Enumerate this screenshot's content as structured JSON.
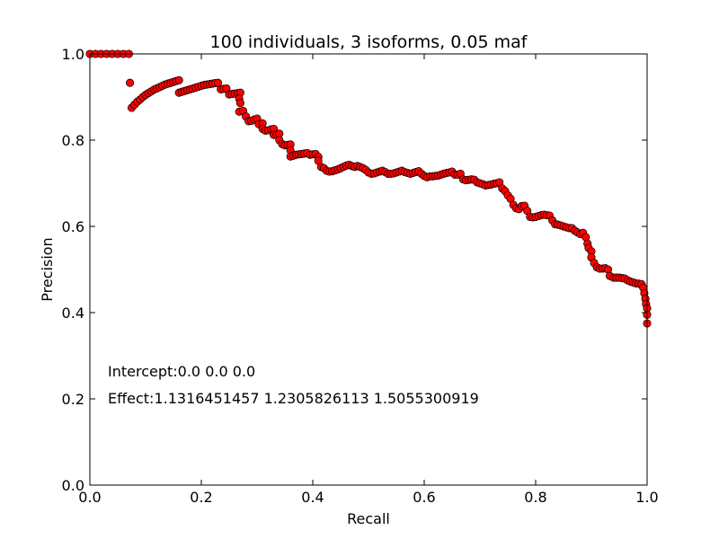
{
  "chart_data": {
    "type": "scatter",
    "title": "100 individuals, 3 isoforms, 0.05 maf",
    "xlabel": "Recall",
    "ylabel": "Precision",
    "xlim": [
      0.0,
      1.0
    ],
    "ylim": [
      0.0,
      1.0
    ],
    "xticks": [
      "0.0",
      "0.2",
      "0.4",
      "0.6",
      "0.8",
      "1.0"
    ],
    "yticks": [
      "0.0",
      "0.2",
      "0.4",
      "0.6",
      "0.8",
      "1.0"
    ],
    "grid": false,
    "legend": "none",
    "marker_color": "#ff0000",
    "marker_edge_color": "#000000",
    "annotations": [
      "Intercept:0.0 0.0 0.0",
      "Effect:1.1316451457 1.2305826113 1.5055300919"
    ],
    "points": [
      [
        0.0,
        1.0
      ],
      [
        0.01,
        1.0
      ],
      [
        0.02,
        1.0
      ],
      [
        0.03,
        1.0
      ],
      [
        0.04,
        1.0
      ],
      [
        0.05,
        1.0
      ],
      [
        0.06,
        1.0
      ],
      [
        0.07,
        1.0
      ],
      [
        0.072,
        0.933
      ],
      [
        0.075,
        0.875
      ],
      [
        0.08,
        0.882
      ],
      [
        0.085,
        0.889
      ],
      [
        0.09,
        0.894
      ],
      [
        0.095,
        0.9
      ],
      [
        0.1,
        0.905
      ],
      [
        0.105,
        0.909
      ],
      [
        0.11,
        0.913
      ],
      [
        0.115,
        0.917
      ],
      [
        0.12,
        0.92
      ],
      [
        0.125,
        0.923
      ],
      [
        0.13,
        0.926
      ],
      [
        0.135,
        0.929
      ],
      [
        0.14,
        0.931
      ],
      [
        0.145,
        0.933
      ],
      [
        0.15,
        0.935
      ],
      [
        0.155,
        0.937
      ],
      [
        0.16,
        0.939
      ],
      [
        0.16,
        0.91
      ],
      [
        0.165,
        0.912
      ],
      [
        0.17,
        0.914
      ],
      [
        0.175,
        0.916
      ],
      [
        0.18,
        0.918
      ],
      [
        0.185,
        0.92
      ],
      [
        0.19,
        0.922
      ],
      [
        0.195,
        0.924
      ],
      [
        0.2,
        0.926
      ],
      [
        0.205,
        0.928
      ],
      [
        0.21,
        0.929
      ],
      [
        0.215,
        0.93
      ],
      [
        0.22,
        0.931
      ],
      [
        0.225,
        0.932
      ],
      [
        0.23,
        0.933
      ],
      [
        0.235,
        0.918
      ],
      [
        0.24,
        0.919
      ],
      [
        0.245,
        0.92
      ],
      [
        0.25,
        0.906
      ],
      [
        0.255,
        0.907
      ],
      [
        0.26,
        0.908
      ],
      [
        0.265,
        0.909
      ],
      [
        0.27,
        0.91
      ],
      [
        0.268,
        0.896
      ],
      [
        0.27,
        0.886
      ],
      [
        0.268,
        0.866
      ],
      [
        0.275,
        0.868
      ],
      [
        0.28,
        0.855
      ],
      [
        0.285,
        0.844
      ],
      [
        0.29,
        0.845
      ],
      [
        0.295,
        0.848
      ],
      [
        0.3,
        0.85
      ],
      [
        0.303,
        0.837
      ],
      [
        0.31,
        0.839
      ],
      [
        0.31,
        0.826
      ],
      [
        0.315,
        0.822
      ],
      [
        0.32,
        0.823
      ],
      [
        0.325,
        0.825
      ],
      [
        0.33,
        0.826
      ],
      [
        0.33,
        0.812
      ],
      [
        0.335,
        0.813
      ],
      [
        0.34,
        0.815
      ],
      [
        0.34,
        0.8
      ],
      [
        0.345,
        0.791
      ],
      [
        0.35,
        0.788
      ],
      [
        0.355,
        0.789
      ],
      [
        0.36,
        0.79
      ],
      [
        0.36,
        0.776
      ],
      [
        0.36,
        0.762
      ],
      [
        0.365,
        0.764
      ],
      [
        0.37,
        0.766
      ],
      [
        0.375,
        0.767
      ],
      [
        0.38,
        0.768
      ],
      [
        0.385,
        0.769
      ],
      [
        0.39,
        0.77
      ],
      [
        0.395,
        0.766
      ],
      [
        0.4,
        0.767
      ],
      [
        0.405,
        0.768
      ],
      [
        0.41,
        0.761
      ],
      [
        0.41,
        0.752
      ],
      [
        0.415,
        0.738
      ],
      [
        0.42,
        0.735
      ],
      [
        0.425,
        0.729
      ],
      [
        0.43,
        0.727
      ],
      [
        0.435,
        0.728
      ],
      [
        0.44,
        0.73
      ],
      [
        0.445,
        0.732
      ],
      [
        0.45,
        0.735
      ],
      [
        0.455,
        0.738
      ],
      [
        0.46,
        0.741
      ],
      [
        0.465,
        0.743
      ],
      [
        0.47,
        0.74
      ],
      [
        0.475,
        0.738
      ],
      [
        0.48,
        0.74
      ],
      [
        0.485,
        0.738
      ],
      [
        0.49,
        0.735
      ],
      [
        0.495,
        0.731
      ],
      [
        0.5,
        0.725
      ],
      [
        0.505,
        0.722
      ],
      [
        0.51,
        0.723
      ],
      [
        0.515,
        0.725
      ],
      [
        0.52,
        0.727
      ],
      [
        0.525,
        0.729
      ],
      [
        0.53,
        0.726
      ],
      [
        0.535,
        0.722
      ],
      [
        0.54,
        0.722
      ],
      [
        0.545,
        0.723
      ],
      [
        0.55,
        0.725
      ],
      [
        0.555,
        0.727
      ],
      [
        0.56,
        0.729
      ],
      [
        0.565,
        0.726
      ],
      [
        0.57,
        0.724
      ],
      [
        0.575,
        0.722
      ],
      [
        0.58,
        0.724
      ],
      [
        0.585,
        0.726
      ],
      [
        0.59,
        0.728
      ],
      [
        0.595,
        0.722
      ],
      [
        0.6,
        0.717
      ],
      [
        0.605,
        0.714
      ],
      [
        0.61,
        0.716
      ],
      [
        0.615,
        0.716
      ],
      [
        0.62,
        0.717
      ],
      [
        0.625,
        0.718
      ],
      [
        0.63,
        0.72
      ],
      [
        0.635,
        0.722
      ],
      [
        0.64,
        0.724
      ],
      [
        0.645,
        0.725
      ],
      [
        0.65,
        0.727
      ],
      [
        0.655,
        0.72
      ],
      [
        0.66,
        0.72
      ],
      [
        0.665,
        0.722
      ],
      [
        0.67,
        0.709
      ],
      [
        0.675,
        0.707
      ],
      [
        0.68,
        0.708
      ],
      [
        0.685,
        0.709
      ],
      [
        0.69,
        0.708
      ],
      [
        0.695,
        0.702
      ],
      [
        0.7,
        0.7
      ],
      [
        0.705,
        0.698
      ],
      [
        0.71,
        0.695
      ],
      [
        0.715,
        0.696
      ],
      [
        0.72,
        0.697
      ],
      [
        0.725,
        0.699
      ],
      [
        0.73,
        0.7
      ],
      [
        0.735,
        0.702
      ],
      [
        0.74,
        0.688
      ],
      [
        0.745,
        0.682
      ],
      [
        0.75,
        0.672
      ],
      [
        0.755,
        0.664
      ],
      [
        0.76,
        0.65
      ],
      [
        0.765,
        0.642
      ],
      [
        0.77,
        0.64
      ],
      [
        0.775,
        0.647
      ],
      [
        0.78,
        0.648
      ],
      [
        0.785,
        0.636
      ],
      [
        0.79,
        0.622
      ],
      [
        0.795,
        0.621
      ],
      [
        0.8,
        0.622
      ],
      [
        0.805,
        0.624
      ],
      [
        0.81,
        0.626
      ],
      [
        0.815,
        0.627
      ],
      [
        0.82,
        0.626
      ],
      [
        0.825,
        0.625
      ],
      [
        0.83,
        0.614
      ],
      [
        0.835,
        0.605
      ],
      [
        0.84,
        0.604
      ],
      [
        0.845,
        0.602
      ],
      [
        0.85,
        0.6
      ],
      [
        0.855,
        0.598
      ],
      [
        0.86,
        0.596
      ],
      [
        0.865,
        0.596
      ],
      [
        0.87,
        0.59
      ],
      [
        0.875,
        0.586
      ],
      [
        0.88,
        0.582
      ],
      [
        0.885,
        0.585
      ],
      [
        0.89,
        0.575
      ],
      [
        0.893,
        0.56
      ],
      [
        0.895,
        0.55
      ],
      [
        0.9,
        0.542
      ],
      [
        0.9,
        0.528
      ],
      [
        0.905,
        0.515
      ],
      [
        0.91,
        0.505
      ],
      [
        0.915,
        0.502
      ],
      [
        0.92,
        0.502
      ],
      [
        0.925,
        0.503
      ],
      [
        0.93,
        0.5
      ],
      [
        0.933,
        0.485
      ],
      [
        0.94,
        0.481
      ],
      [
        0.945,
        0.481
      ],
      [
        0.95,
        0.481
      ],
      [
        0.955,
        0.48
      ],
      [
        0.96,
        0.479
      ],
      [
        0.965,
        0.475
      ],
      [
        0.97,
        0.472
      ],
      [
        0.975,
        0.47
      ],
      [
        0.98,
        0.468
      ],
      [
        0.985,
        0.467
      ],
      [
        0.99,
        0.466
      ],
      [
        0.993,
        0.458
      ],
      [
        0.995,
        0.445
      ],
      [
        0.997,
        0.432
      ],
      [
        0.998,
        0.42
      ],
      [
        1.0,
        0.41
      ],
      [
        1.0,
        0.395
      ],
      [
        1.0,
        0.375
      ]
    ]
  }
}
